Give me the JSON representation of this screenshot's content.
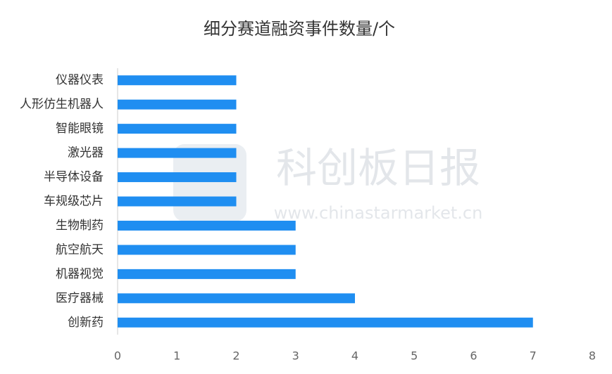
{
  "chart_data": {
    "type": "bar",
    "orientation": "horizontal",
    "title": "细分赛道融资事件数量/个",
    "categories": [
      "仪器仪表",
      "人形仿生机器人",
      "智能眼镜",
      "激光器",
      "半导体设备",
      "车规级芯片",
      "生物制药",
      "航空航天",
      "机器视觉",
      "医疗器械",
      "创新药"
    ],
    "values": [
      2,
      2,
      2,
      2,
      2,
      2,
      3,
      3,
      3,
      4,
      7
    ],
    "color": "#1f8ef1",
    "xlim": [
      0,
      8
    ],
    "xticks": [
      0,
      1,
      2,
      3,
      4,
      5,
      6,
      7,
      8
    ],
    "watermark": {
      "title": "科创板日报",
      "url": "www.chinastarmarket.cn"
    }
  }
}
